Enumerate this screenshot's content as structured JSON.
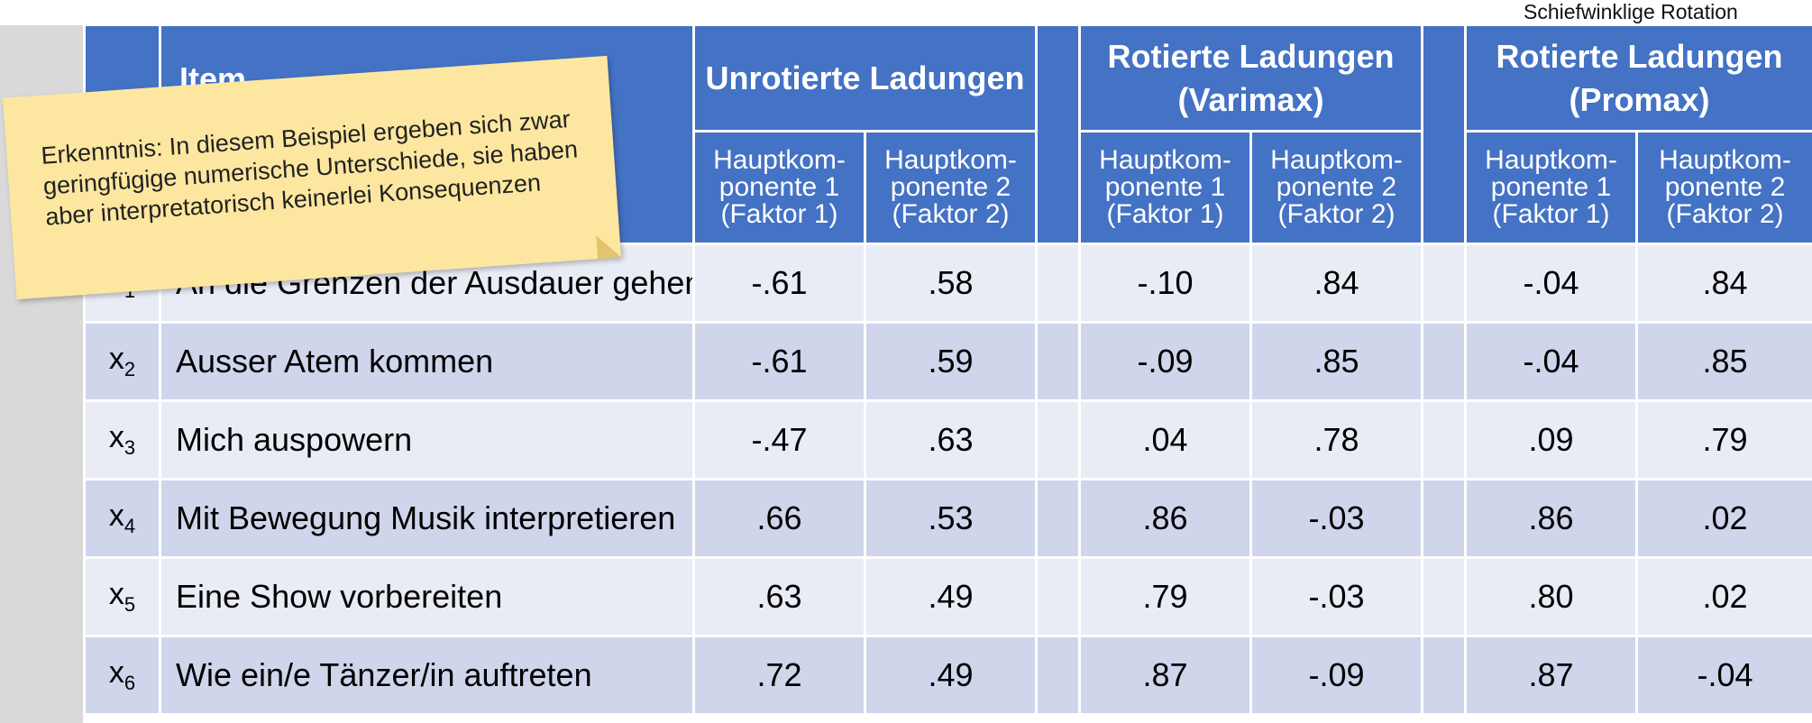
{
  "top_label": "Schiefwinklige Rotation",
  "header": {
    "item_label": "Item",
    "groups": [
      "Unrotierte Ladungen",
      "Rotierte Ladungen (Varimax)",
      "Rotierte Ladungen (Promax)"
    ],
    "sub_columns": [
      "Hauptkom-ponente 1 (Faktor 1)",
      "Hauptkom-ponente 2 (Faktor 2)",
      "Hauptkom-ponente 1 (Faktor 1)",
      "Hauptkom-ponente 2 (Faktor 2)",
      "Hauptkom-ponente 1 (Faktor 1)",
      "Hauptkom-ponente 2 (Faktor 2)"
    ]
  },
  "rows": [
    {
      "var": "x",
      "sub": "1",
      "item": "An die Grenzen der Ausdauer gehen",
      "values": [
        "-.61",
        ".58",
        "-.10",
        ".84",
        "-.04",
        ".84"
      ]
    },
    {
      "var": "x",
      "sub": "2",
      "item": "Ausser Atem kommen",
      "values": [
        "-.61",
        ".59",
        "-.09",
        ".85",
        "-.04",
        ".85"
      ]
    },
    {
      "var": "x",
      "sub": "3",
      "item": "Mich auspowern",
      "values": [
        "-.47",
        ".63",
        ".04",
        ".78",
        ".09",
        ".79"
      ]
    },
    {
      "var": "x",
      "sub": "4",
      "item": "Mit Bewegung Musik interpretieren",
      "values": [
        ".66",
        ".53",
        ".86",
        "-.03",
        ".86",
        ".02"
      ]
    },
    {
      "var": "x",
      "sub": "5",
      "item": "Eine Show vorbereiten",
      "values": [
        ".63",
        ".49",
        ".79",
        "-.03",
        ".80",
        ".02"
      ]
    },
    {
      "var": "x",
      "sub": "6",
      "item": "Wie ein/e Tänzer/in auftreten",
      "values": [
        ".72",
        ".49",
        ".87",
        "-.09",
        ".87",
        "-.04"
      ]
    }
  ],
  "note": {
    "text": "Erkenntnis: In diesem Beispiel ergeben sich zwar geringfügige numerische Unterschiede, sie haben aber interpretatorisch keinerlei Konsequenzen"
  },
  "colors": {
    "header_bg": "#4472c4",
    "row_light": "#e9ebf5",
    "row_dark": "#cfd5ea",
    "note_bg": "#fde7a0"
  }
}
